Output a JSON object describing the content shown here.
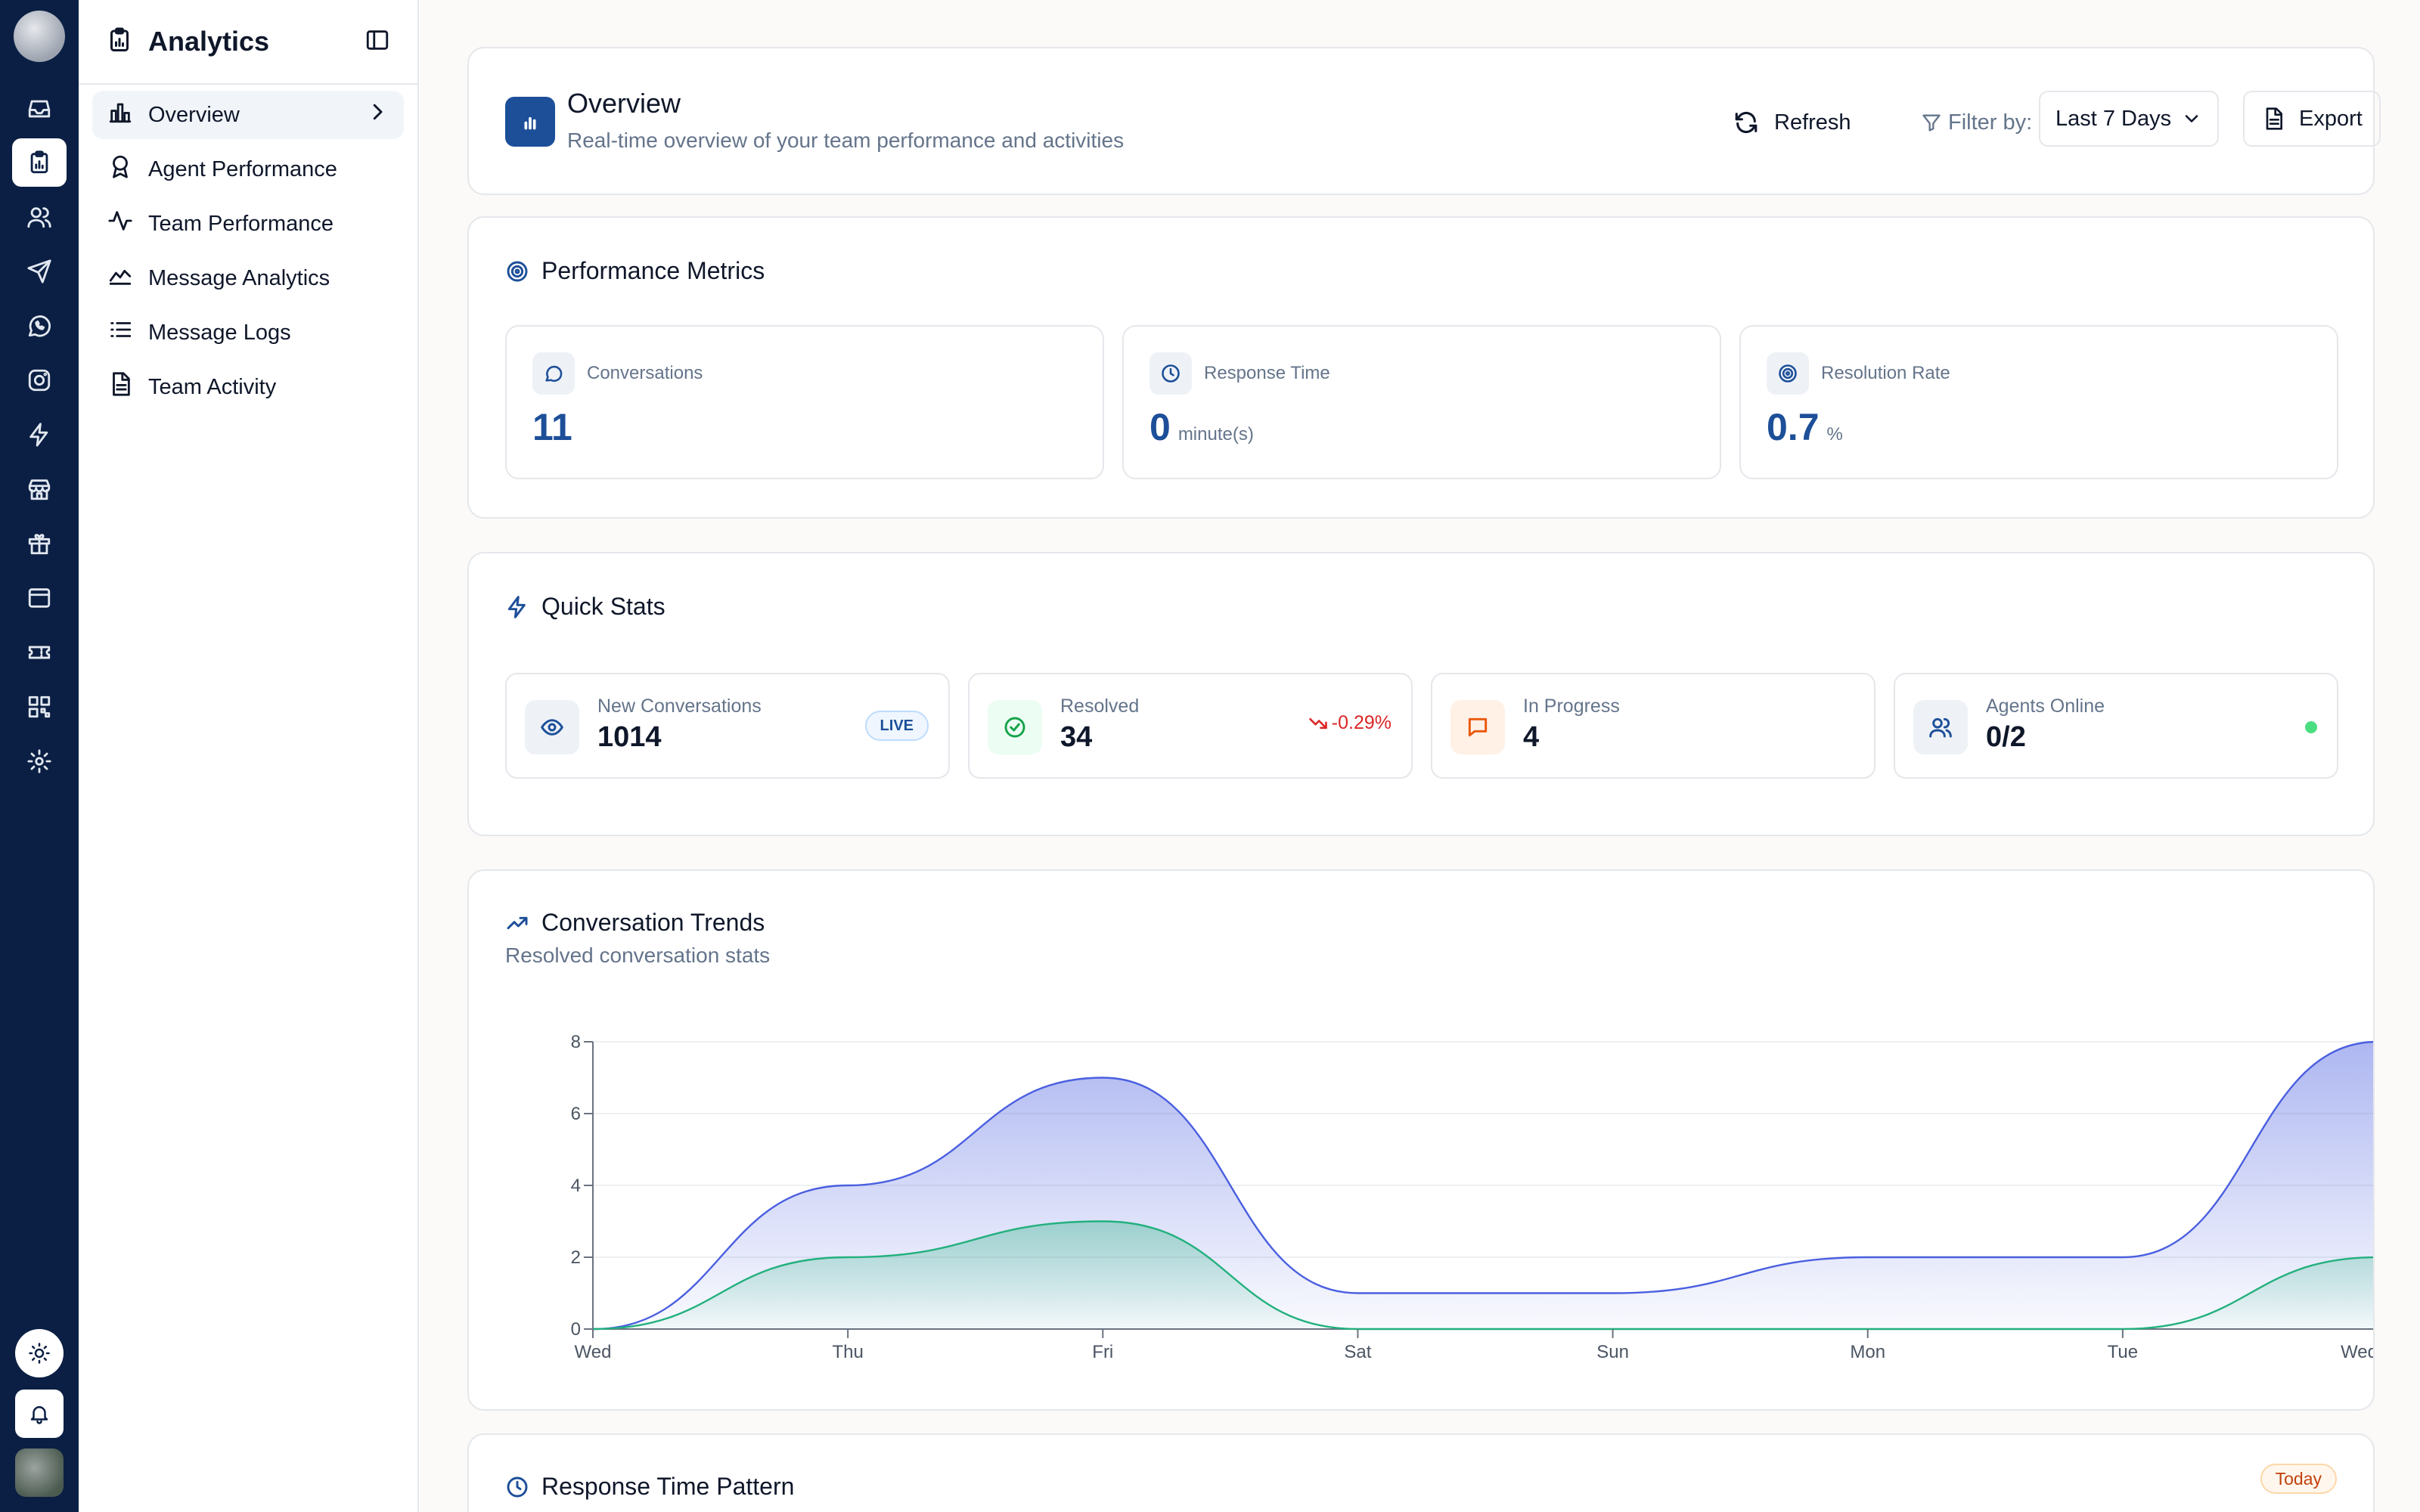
{
  "rail": {
    "items": [
      {
        "icon": "inbox-icon",
        "active": false
      },
      {
        "icon": "clipboard-analytics-icon",
        "active": true
      },
      {
        "icon": "users-icon",
        "active": false
      },
      {
        "icon": "send-icon",
        "active": false
      },
      {
        "icon": "whatsapp-icon",
        "active": false
      },
      {
        "icon": "instagram-icon",
        "active": false
      },
      {
        "icon": "lightning-icon",
        "active": false
      },
      {
        "icon": "store-icon",
        "active": false
      },
      {
        "icon": "gift-icon",
        "active": false
      },
      {
        "icon": "browser-window-icon",
        "active": false
      },
      {
        "icon": "ticket-icon",
        "active": false
      },
      {
        "icon": "qr-code-icon",
        "active": false
      },
      {
        "icon": "settings-gear-icon",
        "active": false
      }
    ],
    "bottom": [
      "sun-icon",
      "bell-icon",
      "user-avatar"
    ]
  },
  "sidebar": {
    "title": "Analytics",
    "items": [
      {
        "label": "Overview",
        "icon": "bar-chart-icon",
        "active": true
      },
      {
        "label": "Agent Performance",
        "icon": "award-icon",
        "active": false
      },
      {
        "label": "Team Performance",
        "icon": "activity-icon",
        "active": false
      },
      {
        "label": "Message Analytics",
        "icon": "area-chart-icon",
        "active": false
      },
      {
        "label": "Message Logs",
        "icon": "list-icon",
        "active": false
      },
      {
        "label": "Team Activity",
        "icon": "file-text-icon",
        "active": false
      }
    ]
  },
  "header": {
    "title": "Overview",
    "subtitle": "Real-time overview of your team performance and activities",
    "refresh_label": "Refresh",
    "filter_label": "Filter by:",
    "filter_value": "Last 7 Days",
    "export_label": "Export"
  },
  "metrics": {
    "title": "Performance Metrics",
    "items": [
      {
        "label": "Conversations",
        "value": "11",
        "unit": "",
        "icon": "message-circle-icon"
      },
      {
        "label": "Response Time",
        "value": "0",
        "unit": "minute(s)",
        "icon": "clock-icon"
      },
      {
        "label": "Resolution Rate",
        "value": "0.7",
        "unit": "%",
        "icon": "target-icon"
      }
    ]
  },
  "quick_stats": {
    "title": "Quick Stats",
    "items": [
      {
        "label": "New Conversations",
        "value": "1014",
        "badge": "LIVE",
        "icon": "eye-icon"
      },
      {
        "label": "Resolved",
        "value": "34",
        "trend": "-0.29%",
        "icon": "check-circle-icon"
      },
      {
        "label": "In Progress",
        "value": "4",
        "icon": "message-square-icon"
      },
      {
        "label": "Agents Online",
        "value": "0/2",
        "icon": "users-icon"
      }
    ]
  },
  "trends": {
    "title": "Conversation Trends",
    "subtitle": "Resolved conversation stats"
  },
  "chart_data": {
    "type": "area",
    "title": "Conversation Trends",
    "subtitle": "Resolved conversation stats",
    "categories": [
      "Wed",
      "Thu",
      "Fri",
      "Sat",
      "Sun",
      "Mon",
      "Tue",
      "Wed"
    ],
    "series": [
      {
        "values": [
          0,
          4,
          7,
          1,
          1,
          2,
          2,
          8
        ],
        "color": "#4a5fe0"
      },
      {
        "values": [
          0,
          2,
          3,
          0,
          0,
          0,
          0,
          2
        ],
        "color": "#22b07d"
      }
    ],
    "yticks": [
      0,
      2,
      4,
      6,
      8
    ],
    "ylim": [
      0,
      8
    ],
    "grid": true
  },
  "response_pattern": {
    "title": "Response Time Pattern",
    "badge": "Today"
  },
  "colors": {
    "rail_bg": "#0b1f44",
    "accent": "#1d4f99",
    "negative": "#dc2626",
    "online": "#4ade80"
  }
}
